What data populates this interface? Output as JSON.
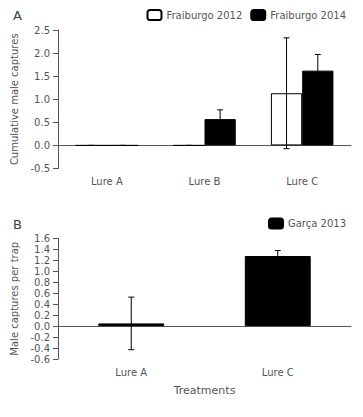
{
  "chart_data": [
    {
      "type": "bar",
      "title": "A",
      "ylabel": "Cumulative male captures",
      "categories": [
        "Lure A",
        "Lure B",
        "Lure C"
      ],
      "series": [
        {
          "name": "Fraiburgo 2012",
          "color": "white",
          "values": [
            0.0,
            0.0,
            1.13
          ],
          "errors": [
            0.0,
            0.0,
            1.2
          ]
        },
        {
          "name": "Fraiburgo 2014",
          "color": "black",
          "values": [
            0.0,
            0.57,
            1.62
          ],
          "errors": [
            0.0,
            0.2,
            0.35
          ]
        }
      ],
      "ylim": [
        -0.5,
        2.5
      ],
      "yticks": [
        -0.5,
        {
          "value": 0,
          "label": "0.0"
        },
        0.5,
        {
          "value": 1,
          "label": "1.0"
        },
        1.5,
        {
          "value": 2,
          "label": "2.0"
        },
        2.5
      ],
      "grid": false,
      "legend": "upper right"
    },
    {
      "type": "bar",
      "title": "B",
      "ylabel": "Male captures per trap",
      "xlabel": "Treatments",
      "categories": [
        "Lure A",
        "Lure C"
      ],
      "series": [
        {
          "name": "Garça 2013",
          "color": "black",
          "values": [
            0.05,
            1.28
          ],
          "errors": [
            0.48,
            0.1
          ]
        }
      ],
      "ylim": [
        -0.6,
        1.6
      ],
      "yticks": [
        -0.6,
        -0.4,
        -0.2,
        {
          "value": 0,
          "label": "0.0"
        },
        0.2,
        0.4,
        0.6,
        0.8,
        {
          "value": 1,
          "label": "1.0"
        },
        1.2,
        1.4,
        1.6
      ],
      "grid": false,
      "legend": "upper right"
    }
  ]
}
